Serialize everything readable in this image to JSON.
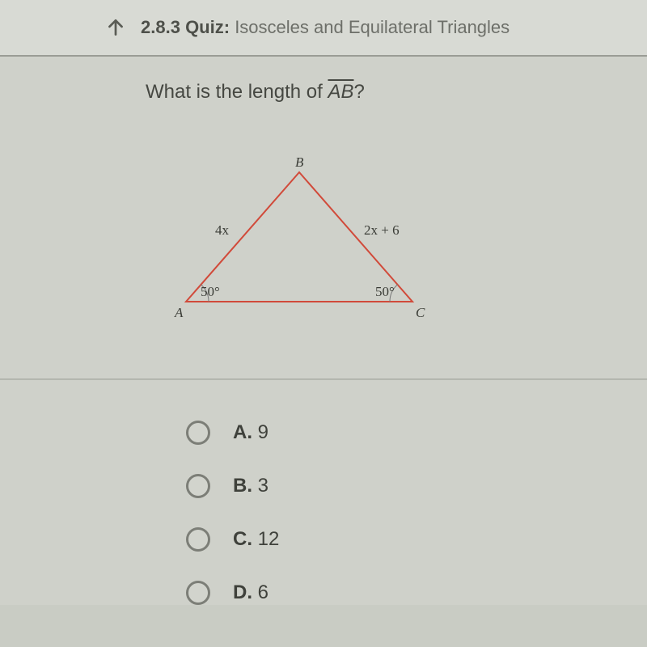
{
  "nav": {
    "section_number": "2.8.3",
    "section_label": "Quiz:",
    "section_title": "Isosceles and Equilateral Triangles"
  },
  "question": {
    "prefix": "What is the length of ",
    "segment": "AB",
    "suffix": "?"
  },
  "triangle": {
    "vertex_top": "B",
    "vertex_left": "A",
    "vertex_right": "C",
    "side_left_label": "4x",
    "side_right_label": "2x + 6",
    "angle_left": "50°",
    "angle_right": "50°",
    "stroke_color": "#d14a3a",
    "stroke_width": 2,
    "points": {
      "A": [
        20,
        175
      ],
      "B": [
        160,
        15
      ],
      "C": [
        300,
        175
      ]
    }
  },
  "options": [
    {
      "letter": "A.",
      "value": "9"
    },
    {
      "letter": "B.",
      "value": "3"
    },
    {
      "letter": "C.",
      "value": "12"
    },
    {
      "letter": "D.",
      "value": "6"
    }
  ]
}
